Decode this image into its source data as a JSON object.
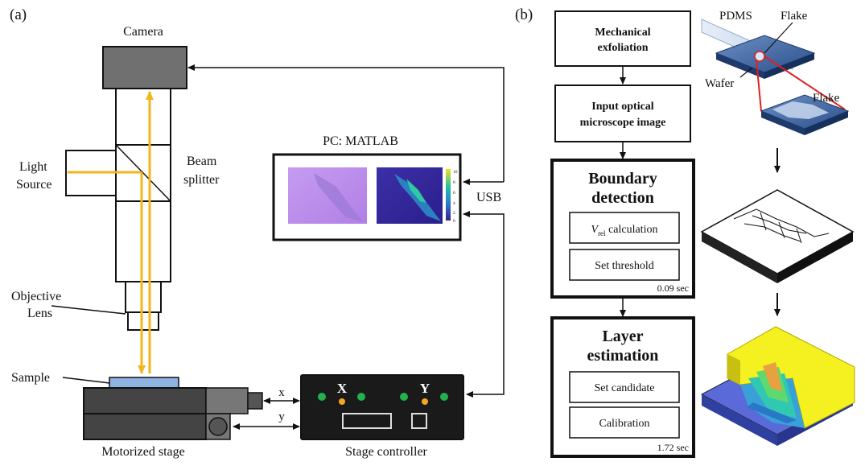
{
  "panel_a": {
    "label": "(a)",
    "camera": "Camera",
    "light_source_line1": "Light",
    "light_source_line2": "Source",
    "beam_splitter_line1": "Beam",
    "beam_splitter_line2": "splitter",
    "objective_line1": "Objective",
    "objective_line2": "Lens",
    "sample": "Sample",
    "motorized_stage": "Motorized stage",
    "pc_title": "PC: MATLAB",
    "usb": "USB",
    "axis_x": "x",
    "axis_y": "y",
    "controller_x": "X",
    "controller_y": "Y",
    "stage_controller": "Stage controller",
    "colorbar_ticks": [
      "10",
      "8",
      "6",
      "4",
      "2",
      "0"
    ]
  },
  "panel_b": {
    "label": "(b)",
    "step1_line1": "Mechanical",
    "step1_line2": "exfoliation",
    "step2_line1": "Input optical",
    "step2_line2": "microscope image",
    "step3_line1": "Boundary",
    "step3_line2": "detection",
    "vrel_symbol": "V",
    "vrel_sub": "rel",
    "vrel_text": " calculation",
    "set_threshold": "Set threshold",
    "time1": "0.09 sec",
    "step4_line1": "Layer",
    "step4_line2": "estimation",
    "set_candidate": "Set candidate",
    "calibration": "Calibration",
    "time2": "1.72 sec",
    "pdms": "PDMS",
    "flake": "Flake",
    "wafer": "Wafer",
    "flake_zoom": "Flake"
  },
  "colors": {
    "light_path": "#f2b51c",
    "camera_gray": "#707070",
    "sample_blue": "#8fb4e3",
    "controller_black": "#1a1a1a",
    "led_green": "#22b14c",
    "led_orange": "#f5a623",
    "wafer_blue": "#2a4f8a",
    "zoom_red": "#e02020",
    "yellow_3d": "#f5f020"
  }
}
